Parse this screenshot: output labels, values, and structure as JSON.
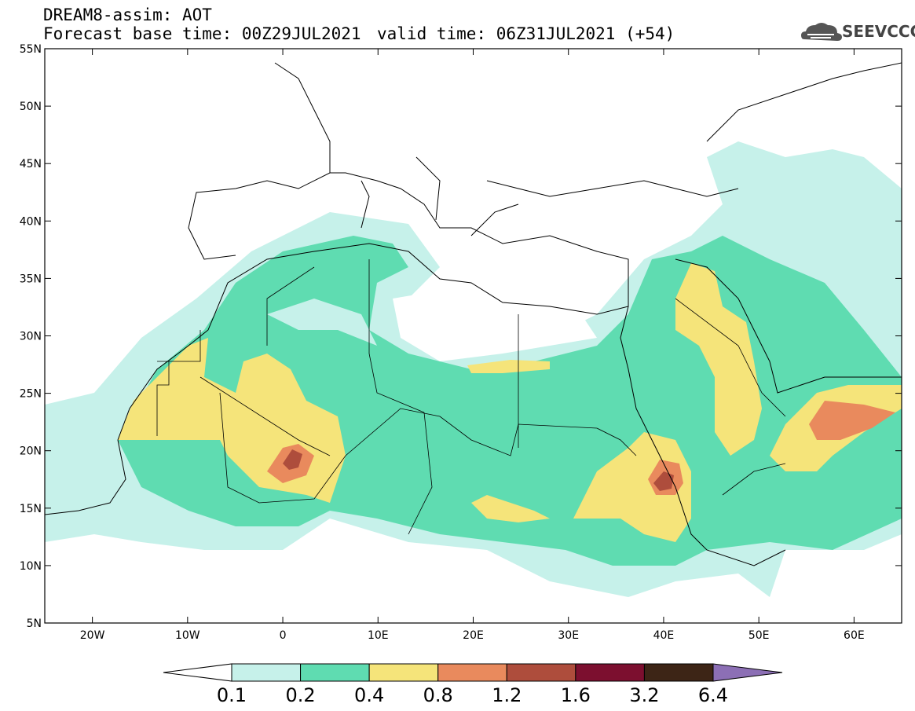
{
  "header": {
    "model": "DREAM8-assim: AOT",
    "base_time": "Forecast base time: 00Z29JUL2021",
    "valid_time": "valid time: 06Z31JUL2021 (+54)",
    "logo_text": "SEEVCCC"
  },
  "map": {
    "lon_range": [
      -25,
      65
    ],
    "lat_range": [
      5,
      55
    ],
    "lon_ticks": [
      {
        "value": -20,
        "label": "20W"
      },
      {
        "value": -10,
        "label": "10W"
      },
      {
        "value": 0,
        "label": "0"
      },
      {
        "value": 10,
        "label": "10E"
      },
      {
        "value": 20,
        "label": "20E"
      },
      {
        "value": 30,
        "label": "30E"
      },
      {
        "value": 40,
        "label": "40E"
      },
      {
        "value": 50,
        "label": "50E"
      },
      {
        "value": 60,
        "label": "60E"
      }
    ],
    "lat_ticks": [
      {
        "value": 55,
        "label": "55N"
      },
      {
        "value": 50,
        "label": "50N"
      },
      {
        "value": 45,
        "label": "45N"
      },
      {
        "value": 40,
        "label": "40N"
      },
      {
        "value": 35,
        "label": "35N"
      },
      {
        "value": 30,
        "label": "30N"
      },
      {
        "value": 25,
        "label": "25N"
      },
      {
        "value": 20,
        "label": "20N"
      },
      {
        "value": 15,
        "label": "15N"
      },
      {
        "value": 10,
        "label": "10N"
      },
      {
        "value": 5,
        "label": "5N"
      }
    ]
  },
  "legend": {
    "labels": [
      "0.1",
      "0.2",
      "0.4",
      "0.8",
      "1.2",
      "1.6",
      "3.2",
      "6.4"
    ],
    "colors": [
      "#ffffff",
      "#c6f1ea",
      "#5fdcb1",
      "#f5e47a",
      "#e98a5d",
      "#ae4d3c",
      "#7c0f2f",
      "#3d2516",
      "#8c6fb5"
    ]
  }
}
